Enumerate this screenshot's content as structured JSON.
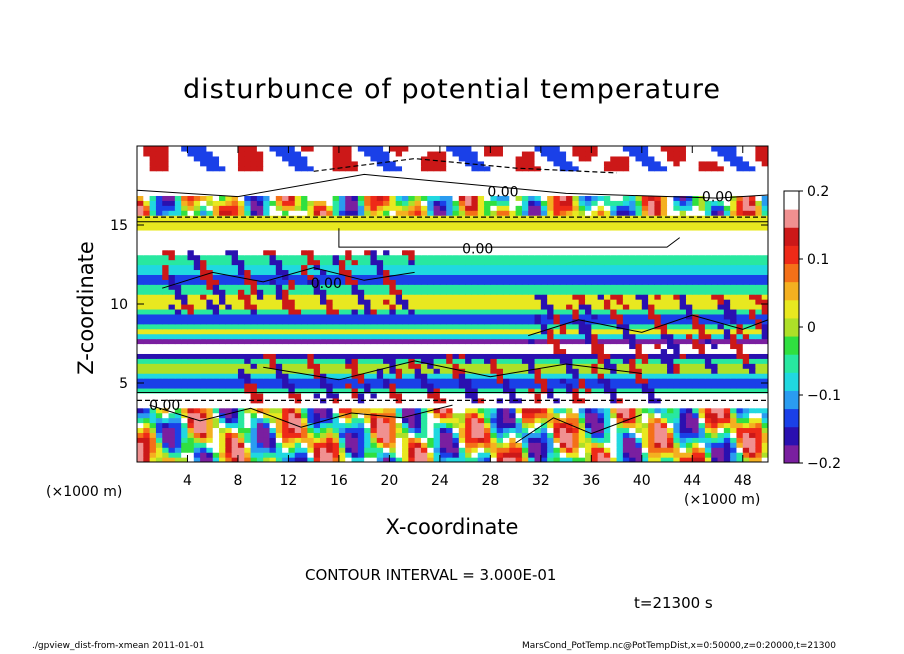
{
  "chart_data": {
    "type": "heatmap",
    "title": "disturbunce of potential temperature",
    "xlabel": "X-coordinate",
    "ylabel": "Z-coordinate",
    "x_unit": "(×1000 m)",
    "xlim": [
      0,
      50
    ],
    "ylim": [
      0,
      20
    ],
    "x_ticks": [
      4,
      8,
      12,
      16,
      20,
      24,
      28,
      32,
      36,
      40,
      44,
      48
    ],
    "y_ticks": [
      5,
      10,
      15
    ],
    "colorbar": {
      "range": [
        -0.2,
        0.2
      ],
      "tick_labels": [
        "0.2",
        "0.1",
        "0",
        "−0.1",
        "−0.2"
      ],
      "tick_values": [
        0.2,
        0.1,
        0,
        -0.1,
        -0.2
      ],
      "colors": [
        "#7a1fa0",
        "#2a10b0",
        "#1a40e8",
        "#2a9cf0",
        "#20d8e0",
        "#28e8a0",
        "#30e040",
        "#aee028",
        "#e8e820",
        "#f4b020",
        "#f47018",
        "#ee2a18",
        "#cc1818",
        "#f09090",
        "#ffffff"
      ]
    },
    "contour_labels": [
      "0.00",
      "0.00",
      "0.00",
      "0.00",
      "0.00"
    ],
    "contour_interval": "CONTOUR INTERVAL = 3.000E-01",
    "time": "t=21300 s"
  },
  "footer": {
    "left": "./gpview_dist-from-xmean  2011-01-01",
    "right": "MarsCond_PotTemp.nc@PotTempDist,x=0:50000,z=0:20000,t=21300"
  }
}
